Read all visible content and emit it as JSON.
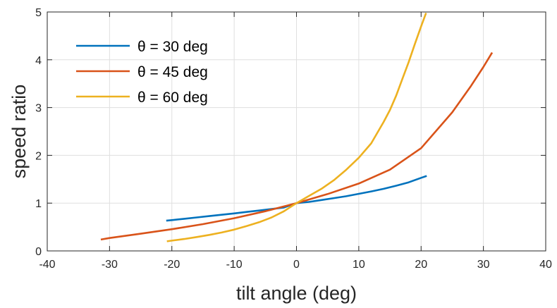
{
  "chart_data": {
    "type": "line",
    "title": "",
    "xlabel": "tilt angle (deg)",
    "ylabel": "speed ratio",
    "xlim": [
      -40,
      40
    ],
    "ylim": [
      0,
      5
    ],
    "xticks": [
      -40,
      -30,
      -20,
      -10,
      0,
      10,
      20,
      30,
      40
    ],
    "yticks": [
      0,
      1,
      2,
      3,
      4,
      5
    ],
    "xtick_labels": [
      "-40",
      "-30",
      "-20",
      "-10",
      "0",
      "10",
      "20",
      "30",
      "40"
    ],
    "ytick_labels": [
      "0",
      "1",
      "2",
      "3",
      "4",
      "5"
    ],
    "grid": true,
    "box": true,
    "legend_position": "top-left",
    "series": [
      {
        "name": "θ = 30 deg",
        "color": "#0072BD",
        "x": [
          -20.9,
          -20,
          -18,
          -16,
          -14,
          -12,
          -10,
          -8,
          -6,
          -4,
          -2,
          0,
          2,
          4,
          6,
          8,
          10,
          12,
          14,
          16,
          18,
          20,
          20.9
        ],
        "y": [
          0.633,
          0.645,
          0.672,
          0.7,
          0.728,
          0.756,
          0.785,
          0.815,
          0.845,
          0.876,
          0.908,
          1.0,
          1.025,
          1.065,
          1.105,
          1.145,
          1.195,
          1.245,
          1.3,
          1.365,
          1.435,
          1.53,
          1.57
        ]
      },
      {
        "name": "θ = 45 deg",
        "color": "#D95319",
        "x": [
          -31.4,
          -30,
          -25,
          -20,
          -15,
          -10,
          -5,
          0,
          5,
          10,
          15,
          20,
          25,
          28,
          30,
          31.4
        ],
        "y": [
          0.237,
          0.27,
          0.36,
          0.455,
          0.56,
          0.685,
          0.83,
          1.0,
          1.19,
          1.41,
          1.7,
          2.15,
          2.9,
          3.45,
          3.85,
          4.15
        ]
      },
      {
        "name": "θ = 60 deg",
        "color": "#EDB120",
        "x": [
          -20.8,
          -20,
          -18,
          -16,
          -14,
          -12,
          -10,
          -8,
          -6,
          -4,
          -2,
          0,
          2,
          4,
          6,
          8,
          10,
          12,
          14,
          15,
          16,
          17,
          18,
          19,
          20,
          20.8
        ],
        "y": [
          0.2,
          0.215,
          0.25,
          0.29,
          0.335,
          0.385,
          0.445,
          0.52,
          0.6,
          0.7,
          0.83,
          1.0,
          1.15,
          1.3,
          1.48,
          1.7,
          1.95,
          2.25,
          2.7,
          2.95,
          3.25,
          3.6,
          3.95,
          4.33,
          4.7,
          4.98
        ]
      }
    ]
  }
}
